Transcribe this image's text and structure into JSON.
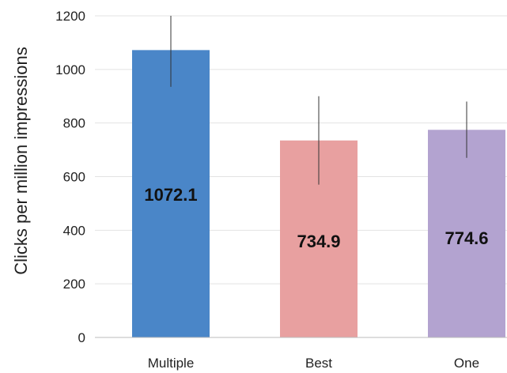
{
  "chart_data": {
    "type": "bar",
    "title": "",
    "xlabel": "",
    "ylabel": "Clicks per million impressions",
    "categories": [
      "Multiple",
      "Best",
      "One"
    ],
    "values": [
      1072.1,
      734.9,
      774.6
    ],
    "value_labels": [
      "1072.1",
      "734.9",
      "774.6"
    ],
    "error_bars": [
      {
        "low": 935,
        "high": 1210
      },
      {
        "low": 570,
        "high": 900
      },
      {
        "low": 670,
        "high": 880
      }
    ],
    "ylim": [
      0,
      1200
    ],
    "yticks": [
      0,
      200,
      400,
      600,
      800,
      1000,
      1200
    ],
    "grid": true,
    "colors": [
      "#4a86c8",
      "#e8a0a0",
      "#b3a3d0"
    ]
  }
}
